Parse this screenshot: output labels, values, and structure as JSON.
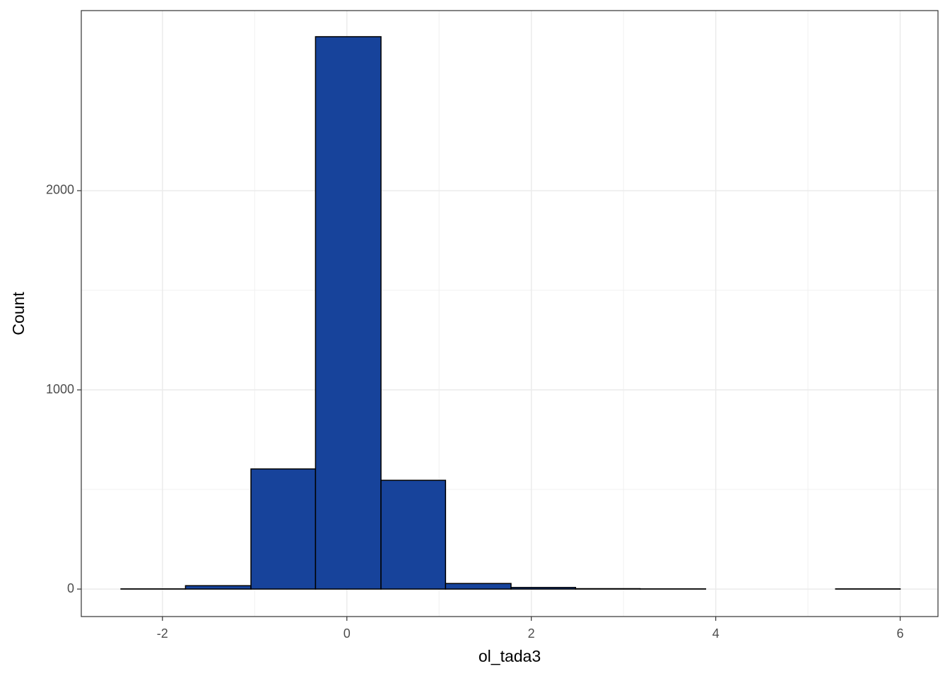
{
  "chart_data": {
    "type": "histogram",
    "x_label": "ol_tada3",
    "y_label": "Count",
    "bins": [
      -2.45,
      -1.75,
      -1.04,
      -0.34,
      0.37,
      1.07,
      1.78,
      2.48,
      3.18,
      3.89,
      4.59,
      5.3,
      6.0
    ],
    "values": [
      1,
      17,
      603,
      2773,
      546,
      28,
      8,
      2,
      1,
      0,
      0,
      1
    ],
    "color": "#17439b",
    "xlim": [
      -2.88,
      6.41
    ],
    "xticks": [
      -2,
      0,
      2,
      4,
      6
    ],
    "ylim": [
      -138,
      2904
    ],
    "yticks": [
      0,
      1000,
      2000
    ],
    "grid": true
  }
}
